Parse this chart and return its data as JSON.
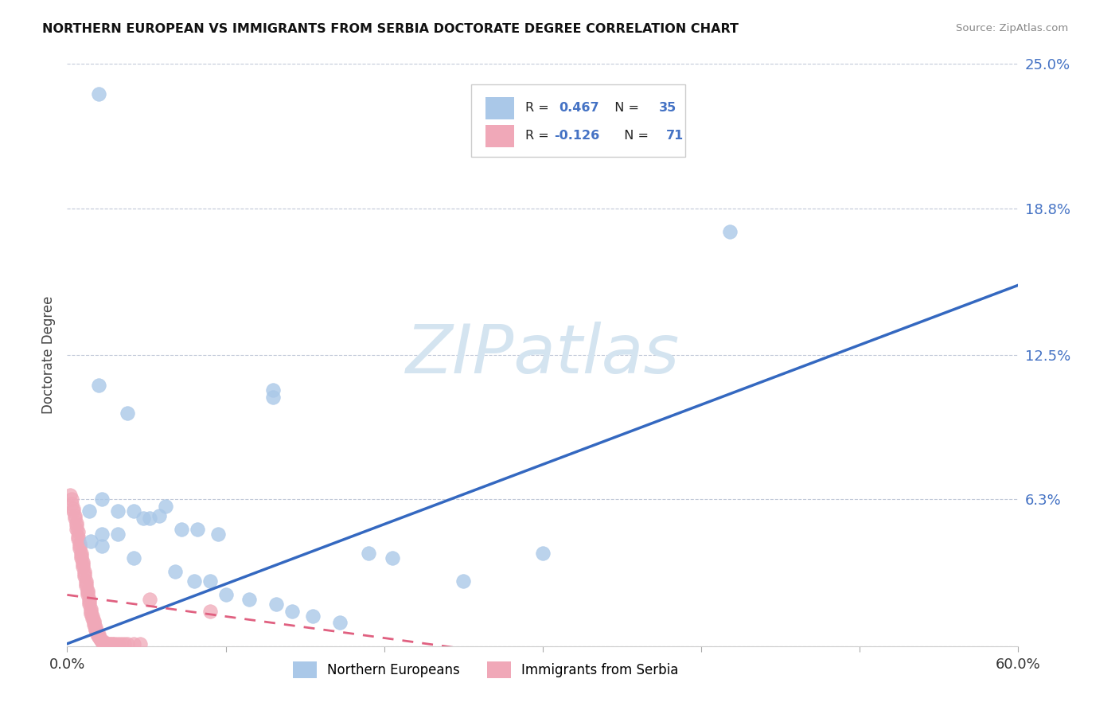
{
  "title": "NORTHERN EUROPEAN VS IMMIGRANTS FROM SERBIA DOCTORATE DEGREE CORRELATION CHART",
  "source": "Source: ZipAtlas.com",
  "ylabel": "Doctorate Degree",
  "xlim": [
    0.0,
    0.6
  ],
  "ylim": [
    0.0,
    0.25
  ],
  "ytick_vals": [
    0.0,
    0.063,
    0.125,
    0.188,
    0.25
  ],
  "ytick_labels": [
    "",
    "6.3%",
    "12.5%",
    "18.8%",
    "25.0%"
  ],
  "xtick_vals": [
    0.0,
    0.1,
    0.2,
    0.3,
    0.4,
    0.5,
    0.6
  ],
  "xtick_labels": [
    "0.0%",
    "",
    "",
    "",
    "",
    "",
    "60.0%"
  ],
  "blue_R": "0.467",
  "blue_N": "35",
  "pink_R": "-0.126",
  "pink_N": "71",
  "blue_marker_color": "#aac8e8",
  "blue_line_color": "#3468c0",
  "pink_marker_color": "#f0a8b8",
  "pink_line_color": "#e06080",
  "watermark_text": "ZIPatlas",
  "watermark_color": "#d4e4f0",
  "blue_line_x": [
    0.0,
    0.6
  ],
  "blue_line_y": [
    0.001,
    0.155
  ],
  "pink_line_x": [
    0.0,
    0.27
  ],
  "pink_line_y": [
    0.022,
    -0.003
  ],
  "blue_pts": [
    [
      0.02,
      0.237
    ],
    [
      0.418,
      0.178
    ],
    [
      0.13,
      0.11
    ],
    [
      0.02,
      0.112
    ],
    [
      0.038,
      0.1
    ],
    [
      0.13,
      0.107
    ],
    [
      0.022,
      0.063
    ],
    [
      0.014,
      0.058
    ],
    [
      0.032,
      0.058
    ],
    [
      0.042,
      0.058
    ],
    [
      0.052,
      0.055
    ],
    [
      0.062,
      0.06
    ],
    [
      0.072,
      0.05
    ],
    [
      0.022,
      0.048
    ],
    [
      0.032,
      0.048
    ],
    [
      0.015,
      0.045
    ],
    [
      0.022,
      0.043
    ],
    [
      0.042,
      0.038
    ],
    [
      0.048,
      0.055
    ],
    [
      0.058,
      0.056
    ],
    [
      0.068,
      0.032
    ],
    [
      0.082,
      0.05
    ],
    [
      0.08,
      0.028
    ],
    [
      0.09,
      0.028
    ],
    [
      0.095,
      0.048
    ],
    [
      0.1,
      0.022
    ],
    [
      0.115,
      0.02
    ],
    [
      0.132,
      0.018
    ],
    [
      0.142,
      0.015
    ],
    [
      0.155,
      0.013
    ],
    [
      0.172,
      0.01
    ],
    [
      0.19,
      0.04
    ],
    [
      0.205,
      0.038
    ],
    [
      0.25,
      0.028
    ],
    [
      0.3,
      0.04
    ]
  ],
  "pink_pts": [
    [
      0.002,
      0.065
    ],
    [
      0.003,
      0.063
    ],
    [
      0.003,
      0.061
    ],
    [
      0.004,
      0.059
    ],
    [
      0.004,
      0.058
    ],
    [
      0.005,
      0.056
    ],
    [
      0.005,
      0.055
    ],
    [
      0.006,
      0.053
    ],
    [
      0.006,
      0.052
    ],
    [
      0.006,
      0.05
    ],
    [
      0.007,
      0.049
    ],
    [
      0.007,
      0.047
    ],
    [
      0.007,
      0.046
    ],
    [
      0.008,
      0.044
    ],
    [
      0.008,
      0.043
    ],
    [
      0.008,
      0.042
    ],
    [
      0.009,
      0.04
    ],
    [
      0.009,
      0.039
    ],
    [
      0.009,
      0.038
    ],
    [
      0.01,
      0.036
    ],
    [
      0.01,
      0.035
    ],
    [
      0.01,
      0.034
    ],
    [
      0.011,
      0.032
    ],
    [
      0.011,
      0.031
    ],
    [
      0.011,
      0.03
    ],
    [
      0.012,
      0.028
    ],
    [
      0.012,
      0.027
    ],
    [
      0.012,
      0.026
    ],
    [
      0.013,
      0.024
    ],
    [
      0.013,
      0.023
    ],
    [
      0.013,
      0.022
    ],
    [
      0.014,
      0.02
    ],
    [
      0.014,
      0.019
    ],
    [
      0.014,
      0.018
    ],
    [
      0.015,
      0.016
    ],
    [
      0.015,
      0.015
    ],
    [
      0.015,
      0.014
    ],
    [
      0.016,
      0.013
    ],
    [
      0.016,
      0.012
    ],
    [
      0.017,
      0.011
    ],
    [
      0.017,
      0.01
    ],
    [
      0.017,
      0.009
    ],
    [
      0.018,
      0.008
    ],
    [
      0.018,
      0.007
    ],
    [
      0.018,
      0.007
    ],
    [
      0.019,
      0.006
    ],
    [
      0.019,
      0.005
    ],
    [
      0.02,
      0.005
    ],
    [
      0.02,
      0.004
    ],
    [
      0.02,
      0.004
    ],
    [
      0.021,
      0.003
    ],
    [
      0.021,
      0.003
    ],
    [
      0.022,
      0.002
    ],
    [
      0.022,
      0.002
    ],
    [
      0.023,
      0.002
    ],
    [
      0.024,
      0.001
    ],
    [
      0.024,
      0.001
    ],
    [
      0.025,
      0.001
    ],
    [
      0.026,
      0.001
    ],
    [
      0.027,
      0.001
    ],
    [
      0.028,
      0.001
    ],
    [
      0.029,
      0.001
    ],
    [
      0.03,
      0.001
    ],
    [
      0.032,
      0.001
    ],
    [
      0.034,
      0.001
    ],
    [
      0.036,
      0.001
    ],
    [
      0.038,
      0.001
    ],
    [
      0.042,
      0.001
    ],
    [
      0.046,
      0.001
    ],
    [
      0.052,
      0.02
    ],
    [
      0.09,
      0.015
    ]
  ]
}
